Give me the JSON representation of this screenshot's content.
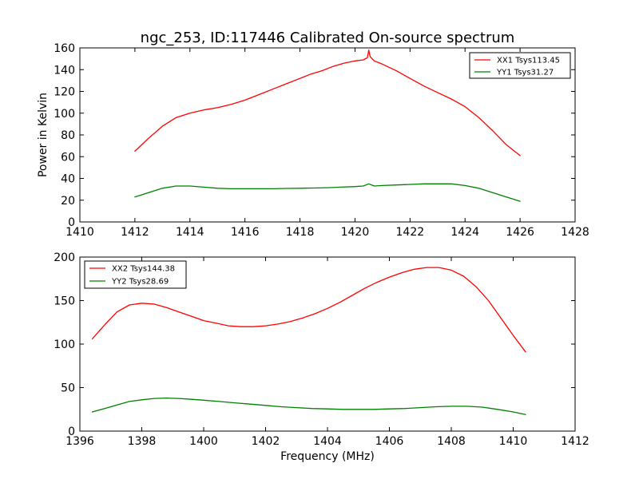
{
  "chart_data": [
    {
      "type": "line",
      "title": "ngc_253, ID:117446 Calibrated On-source spectrum",
      "xlabel": "",
      "ylabel": "Power in Kelvin",
      "xlim": [
        1410,
        1428
      ],
      "ylim": [
        0,
        160
      ],
      "xticks": [
        "1410",
        "1412",
        "1414",
        "1416",
        "1418",
        "1420",
        "1422",
        "1424",
        "1426",
        "1428"
      ],
      "yticks": [
        "0",
        "20",
        "40",
        "60",
        "80",
        "100",
        "120",
        "140",
        "160"
      ],
      "legend_position": "top-right",
      "grid": false,
      "series": [
        {
          "name": "XX1 Tsys113.45",
          "color": "#ff0000",
          "x": [
            1412.0,
            1412.5,
            1413.0,
            1413.5,
            1414.0,
            1414.5,
            1415.0,
            1415.5,
            1416.0,
            1416.5,
            1417.0,
            1417.5,
            1418.0,
            1418.4,
            1418.8,
            1419.2,
            1419.6,
            1420.0,
            1420.3,
            1420.45,
            1420.5,
            1420.55,
            1420.7,
            1421.0,
            1421.5,
            1422.0,
            1422.5,
            1423.0,
            1423.5,
            1424.0,
            1424.5,
            1425.0,
            1425.5,
            1426.0
          ],
          "y": [
            65,
            77,
            88,
            96,
            100,
            103,
            105,
            108,
            112,
            117,
            122,
            127,
            132,
            136,
            139,
            143,
            146,
            148,
            149,
            151,
            158,
            152,
            148,
            145,
            139,
            132,
            125,
            119,
            113,
            106,
            96,
            84,
            71,
            61
          ]
        },
        {
          "name": "YY1 Tsys31.27",
          "color": "#008000",
          "x": [
            1412.0,
            1412.5,
            1413.0,
            1413.5,
            1414.0,
            1414.5,
            1415.0,
            1415.5,
            1416.0,
            1416.5,
            1417.0,
            1417.5,
            1418.0,
            1418.5,
            1419.0,
            1419.5,
            1420.0,
            1420.3,
            1420.5,
            1420.7,
            1421.0,
            1421.5,
            1422.0,
            1422.5,
            1423.0,
            1423.5,
            1424.0,
            1424.5,
            1425.0,
            1425.5,
            1426.0
          ],
          "y": [
            23,
            27,
            31,
            33,
            33,
            32,
            31,
            30.5,
            30.5,
            30.5,
            30.5,
            30.8,
            31,
            31.2,
            31.5,
            32,
            32.5,
            33,
            35,
            33,
            33.5,
            34,
            34.5,
            35,
            35,
            35,
            33.5,
            31,
            27,
            23,
            19
          ]
        }
      ]
    },
    {
      "type": "line",
      "title": "",
      "xlabel": "Frequency (MHz)",
      "ylabel": "",
      "xlim": [
        1396,
        1412
      ],
      "ylim": [
        0,
        200
      ],
      "xticks": [
        "1396",
        "1398",
        "1400",
        "1402",
        "1404",
        "1406",
        "1408",
        "1410",
        "1412"
      ],
      "yticks": [
        "0",
        "50",
        "100",
        "150",
        "200"
      ],
      "legend_position": "top-left",
      "grid": false,
      "series": [
        {
          "name": "XX2 Tsys144.38",
          "color": "#ff0000",
          "x": [
            1396.4,
            1396.8,
            1397.2,
            1397.6,
            1398.0,
            1398.4,
            1398.8,
            1399.2,
            1399.6,
            1400.0,
            1400.4,
            1400.8,
            1401.2,
            1401.6,
            1402.0,
            1402.4,
            1402.8,
            1403.2,
            1403.6,
            1404.0,
            1404.4,
            1404.8,
            1405.2,
            1405.6,
            1406.0,
            1406.4,
            1406.8,
            1407.2,
            1407.6,
            1408.0,
            1408.4,
            1408.8,
            1409.2,
            1409.6,
            1410.0,
            1410.4
          ],
          "y": [
            106,
            122,
            137,
            145,
            147,
            146,
            142,
            137,
            132,
            127,
            124,
            121,
            120,
            120,
            121,
            123,
            126,
            130,
            135,
            141,
            148,
            156,
            164,
            171,
            177,
            182,
            186,
            188,
            188,
            185,
            178,
            166,
            150,
            130,
            110,
            91
          ]
        },
        {
          "name": "YY2 Tsys28.69",
          "color": "#008000",
          "x": [
            1396.4,
            1396.8,
            1397.2,
            1397.6,
            1398.0,
            1398.4,
            1398.8,
            1399.2,
            1399.6,
            1400.0,
            1400.5,
            1401.0,
            1401.5,
            1402.0,
            1402.5,
            1403.0,
            1403.5,
            1404.0,
            1404.5,
            1405.0,
            1405.5,
            1406.0,
            1406.5,
            1407.0,
            1407.5,
            1408.0,
            1408.5,
            1409.0,
            1409.5,
            1410.0,
            1410.4
          ],
          "y": [
            22,
            26,
            30,
            34,
            36,
            37.5,
            38,
            37.5,
            36.5,
            35.5,
            34,
            32.5,
            31,
            29.5,
            28,
            27,
            26,
            25.5,
            25,
            25,
            25,
            25.5,
            26,
            27,
            28,
            28.5,
            28.5,
            27.5,
            25,
            22,
            19
          ]
        }
      ]
    }
  ]
}
